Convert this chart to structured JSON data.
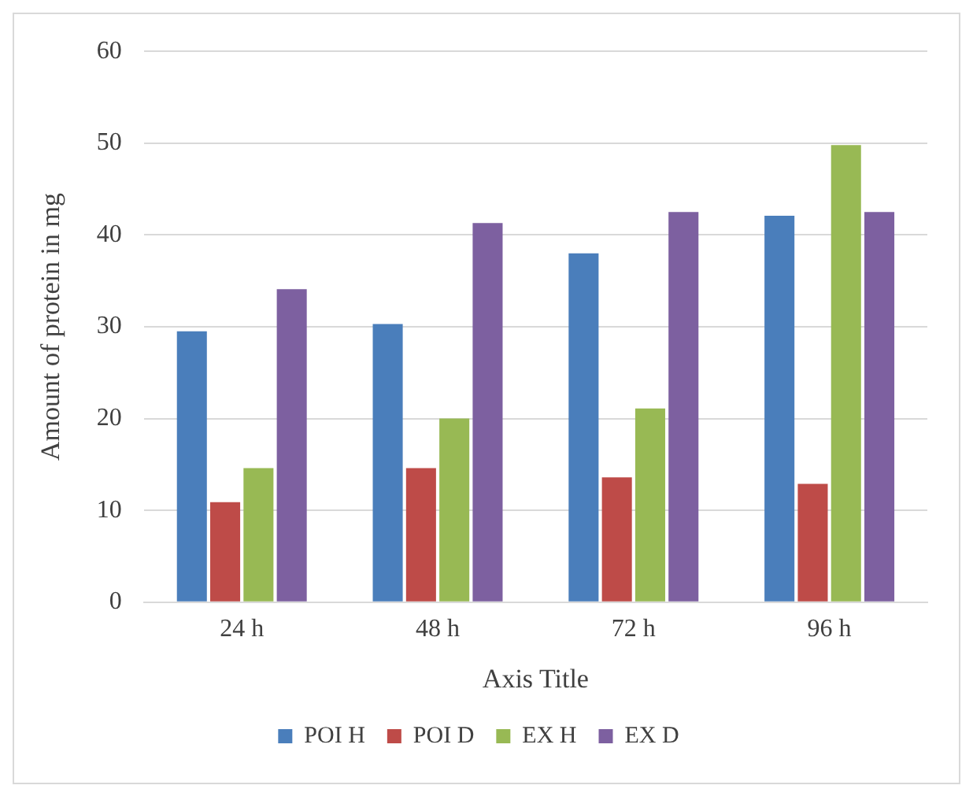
{
  "chart_data": {
    "type": "bar",
    "xlabel": "Axis Title",
    "ylabel": "Amount of protein in mg",
    "categories": [
      "24 h",
      "48 h",
      "72 h",
      "96 h"
    ],
    "series": [
      {
        "name": "POI H",
        "color": "#4a7ebb",
        "values": [
          29.5,
          30.3,
          38.0,
          42.1
        ]
      },
      {
        "name": "POI D",
        "color": "#be4b48",
        "values": [
          10.9,
          14.6,
          13.6,
          12.9
        ]
      },
      {
        "name": "EX H",
        "color": "#98b954",
        "values": [
          14.6,
          20.0,
          21.1,
          49.8
        ]
      },
      {
        "name": "EX D",
        "color": "#7d60a0",
        "values": [
          34.1,
          41.3,
          42.5,
          42.5
        ]
      }
    ],
    "ylim": [
      0,
      60
    ],
    "yticks": [
      0,
      10,
      20,
      30,
      40,
      50,
      60
    ],
    "grid": "y",
    "legend": "bottom"
  }
}
